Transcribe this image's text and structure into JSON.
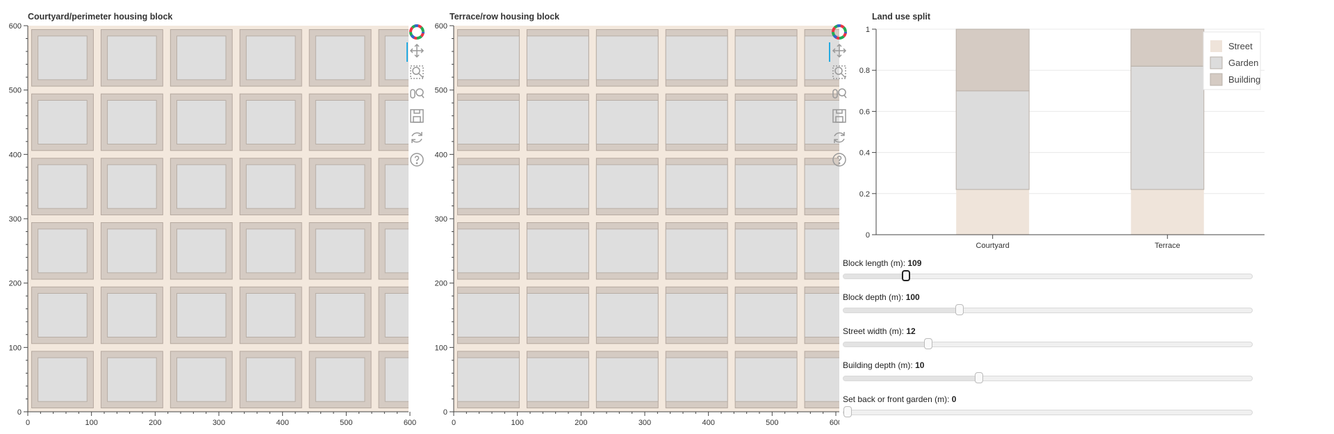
{
  "plots": {
    "courtyard": {
      "title": "Courtyard/perimeter housing block"
    },
    "terrace": {
      "title": "Terrace/row housing block"
    },
    "x_ticks": [
      "0",
      "100",
      "200",
      "300",
      "400",
      "500",
      "600"
    ],
    "y_ticks": [
      "0",
      "100",
      "200",
      "300",
      "400",
      "500",
      "600"
    ]
  },
  "toolbar": {
    "tools": [
      "bokeh-logo-icon",
      "pan-icon",
      "box-zoom-icon",
      "wheel-zoom-icon",
      "save-icon",
      "reset-icon",
      "help-icon"
    ]
  },
  "land_use": {
    "title": "Land use split",
    "legend": [
      "Street",
      "Garden",
      "Building"
    ]
  },
  "chart_data": {
    "type": "bar",
    "stacked": true,
    "title": "Land use split",
    "categories": [
      "Courtyard",
      "Terrace"
    ],
    "series": [
      {
        "name": "Street",
        "values": [
          0.22,
          0.22
        ],
        "color": "#efe4da"
      },
      {
        "name": "Garden",
        "values": [
          0.48,
          0.6
        ],
        "color": "#dcdcdc"
      },
      {
        "name": "Building",
        "values": [
          0.3,
          0.18
        ],
        "color": "#d5cbc3"
      }
    ],
    "ylim": [
      0,
      1
    ],
    "y_ticks": [
      "0",
      "0.2",
      "0.4",
      "0.6",
      "0.8",
      "1"
    ],
    "legend_position": "top-right"
  },
  "sliders": [
    {
      "label": "Block length (m): ",
      "value": "109",
      "fraction": 0.155,
      "active": true
    },
    {
      "label": "Block depth (m): ",
      "value": "100",
      "fraction": 0.285,
      "active": false
    },
    {
      "label": "Street width (m): ",
      "value": "12",
      "fraction": 0.21,
      "active": false
    },
    {
      "label": "Building depth (m): ",
      "value": "10",
      "fraction": 0.333,
      "active": false
    },
    {
      "label": "Set back or front garden (m): ",
      "value": "0",
      "fraction": 0.0,
      "active": false
    }
  ],
  "colors": {
    "street": "#f3e8dd",
    "building": "#d5cbc3",
    "building_stroke": "#b5a89f",
    "garden": "#dedede",
    "garden_stroke": "#b8aea6",
    "axis": "#444",
    "grid": "#e8e8e8",
    "active_tool": "#26aae1"
  }
}
